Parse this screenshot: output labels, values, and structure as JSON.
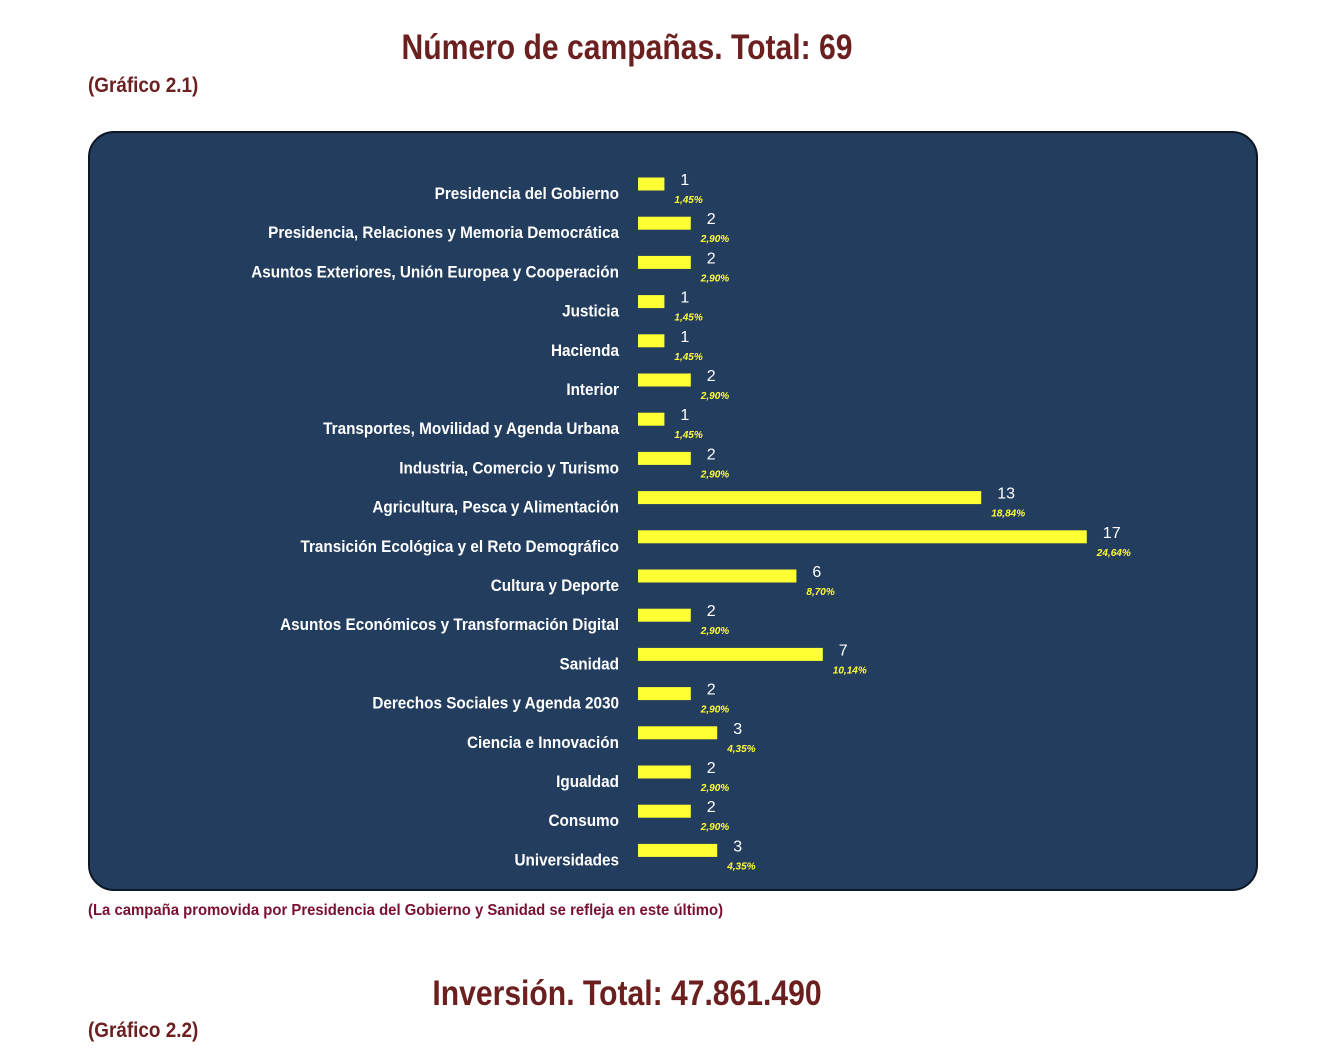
{
  "page": {
    "title1": "Número de campañas. Total: 69",
    "subtitle1": "(Gráfico 2.1)",
    "note": "(La campaña promovida por Presidencia del Gobierno y Sanidad se refleja en este último)",
    "title2": "Inversión. Total: 47.861.490",
    "subtitle2": "(Gráfico 2.2)"
  },
  "colors": {
    "panel_bg": "#233d5e",
    "bar": "#ffff33",
    "category_text": "#ffffff",
    "value_text": "#ffffff",
    "percent_text": "#ffff33",
    "title": "#6b1f1f",
    "note": "#7a1030"
  },
  "chart_data": {
    "type": "bar",
    "orientation": "horizontal",
    "title": "Número de campañas. Total: 69",
    "categories": [
      "Presidencia del Gobierno",
      "Presidencia, Relaciones y Memoria Democrática",
      "Asuntos Exteriores, Unión Europea y Cooperación",
      "Justicia",
      "Hacienda",
      "Interior",
      "Transportes, Movilidad y Agenda Urbana",
      "Industria, Comercio y Turismo",
      "Agricultura, Pesca y Alimentación",
      "Transición Ecológica y el Reto Demográfico",
      "Cultura y Deporte",
      "Asuntos Económicos y Transformación Digital",
      "Sanidad",
      "Derechos Sociales y Agenda 2030",
      "Ciencia e Innovación",
      "Igualdad",
      "Consumo",
      "Universidades"
    ],
    "values": [
      1,
      2,
      2,
      1,
      1,
      2,
      1,
      2,
      13,
      17,
      6,
      2,
      7,
      2,
      3,
      2,
      2,
      3
    ],
    "percent_labels": [
      "1,45%",
      "2,90%",
      "2,90%",
      "1,45%",
      "1,45%",
      "2,90%",
      "1,45%",
      "2,90%",
      "18,84%",
      "24,64%",
      "8,70%",
      "2,90%",
      "10,14%",
      "2,90%",
      "4,35%",
      "2,90%",
      "2,90%",
      "4,35%"
    ],
    "value_labels": [
      "1",
      "2",
      "2",
      "1",
      "1",
      "2",
      "1",
      "2",
      "13",
      "17",
      "6",
      "2",
      "7",
      "2",
      "3",
      "2",
      "2",
      "3"
    ],
    "xlim": [
      0,
      17
    ],
    "grid": false,
    "legend": "none"
  }
}
